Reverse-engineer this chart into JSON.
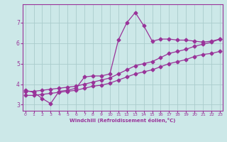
{
  "xlabel": "Windchill (Refroidissement éolien,°C)",
  "x_values": [
    0,
    1,
    2,
    3,
    4,
    5,
    6,
    7,
    8,
    9,
    10,
    11,
    12,
    13,
    14,
    15,
    16,
    17,
    18,
    19,
    20,
    21,
    22,
    23
  ],
  "line_wiggly": [
    3.7,
    3.6,
    3.3,
    3.05,
    3.65,
    3.7,
    3.8,
    4.35,
    4.4,
    4.4,
    4.5,
    6.15,
    7.0,
    7.5,
    6.85,
    6.1,
    6.2,
    6.2,
    6.15,
    6.15,
    6.1,
    6.05,
    6.1,
    6.2
  ],
  "line_upper": [
    3.65,
    3.65,
    3.7,
    3.75,
    3.8,
    3.85,
    3.9,
    4.0,
    4.1,
    4.2,
    4.3,
    4.5,
    4.7,
    4.9,
    5.0,
    5.1,
    5.3,
    5.5,
    5.6,
    5.7,
    5.85,
    5.95,
    6.05,
    6.2
  ],
  "line_lower": [
    3.45,
    3.45,
    3.5,
    3.55,
    3.6,
    3.65,
    3.7,
    3.8,
    3.9,
    3.95,
    4.05,
    4.2,
    4.35,
    4.5,
    4.6,
    4.7,
    4.85,
    5.0,
    5.1,
    5.2,
    5.35,
    5.45,
    5.5,
    5.6
  ],
  "color": "#993399",
  "bg_color": "#cce8e8",
  "grid_color": "#aacccc",
  "ylim": [
    2.7,
    7.9
  ],
  "xlim": [
    -0.3,
    23.3
  ],
  "yticks": [
    3,
    4,
    5,
    6,
    7
  ],
  "xticks": [
    0,
    1,
    2,
    3,
    4,
    5,
    6,
    7,
    8,
    9,
    10,
    11,
    12,
    13,
    14,
    15,
    16,
    17,
    18,
    19,
    20,
    21,
    22,
    23
  ]
}
